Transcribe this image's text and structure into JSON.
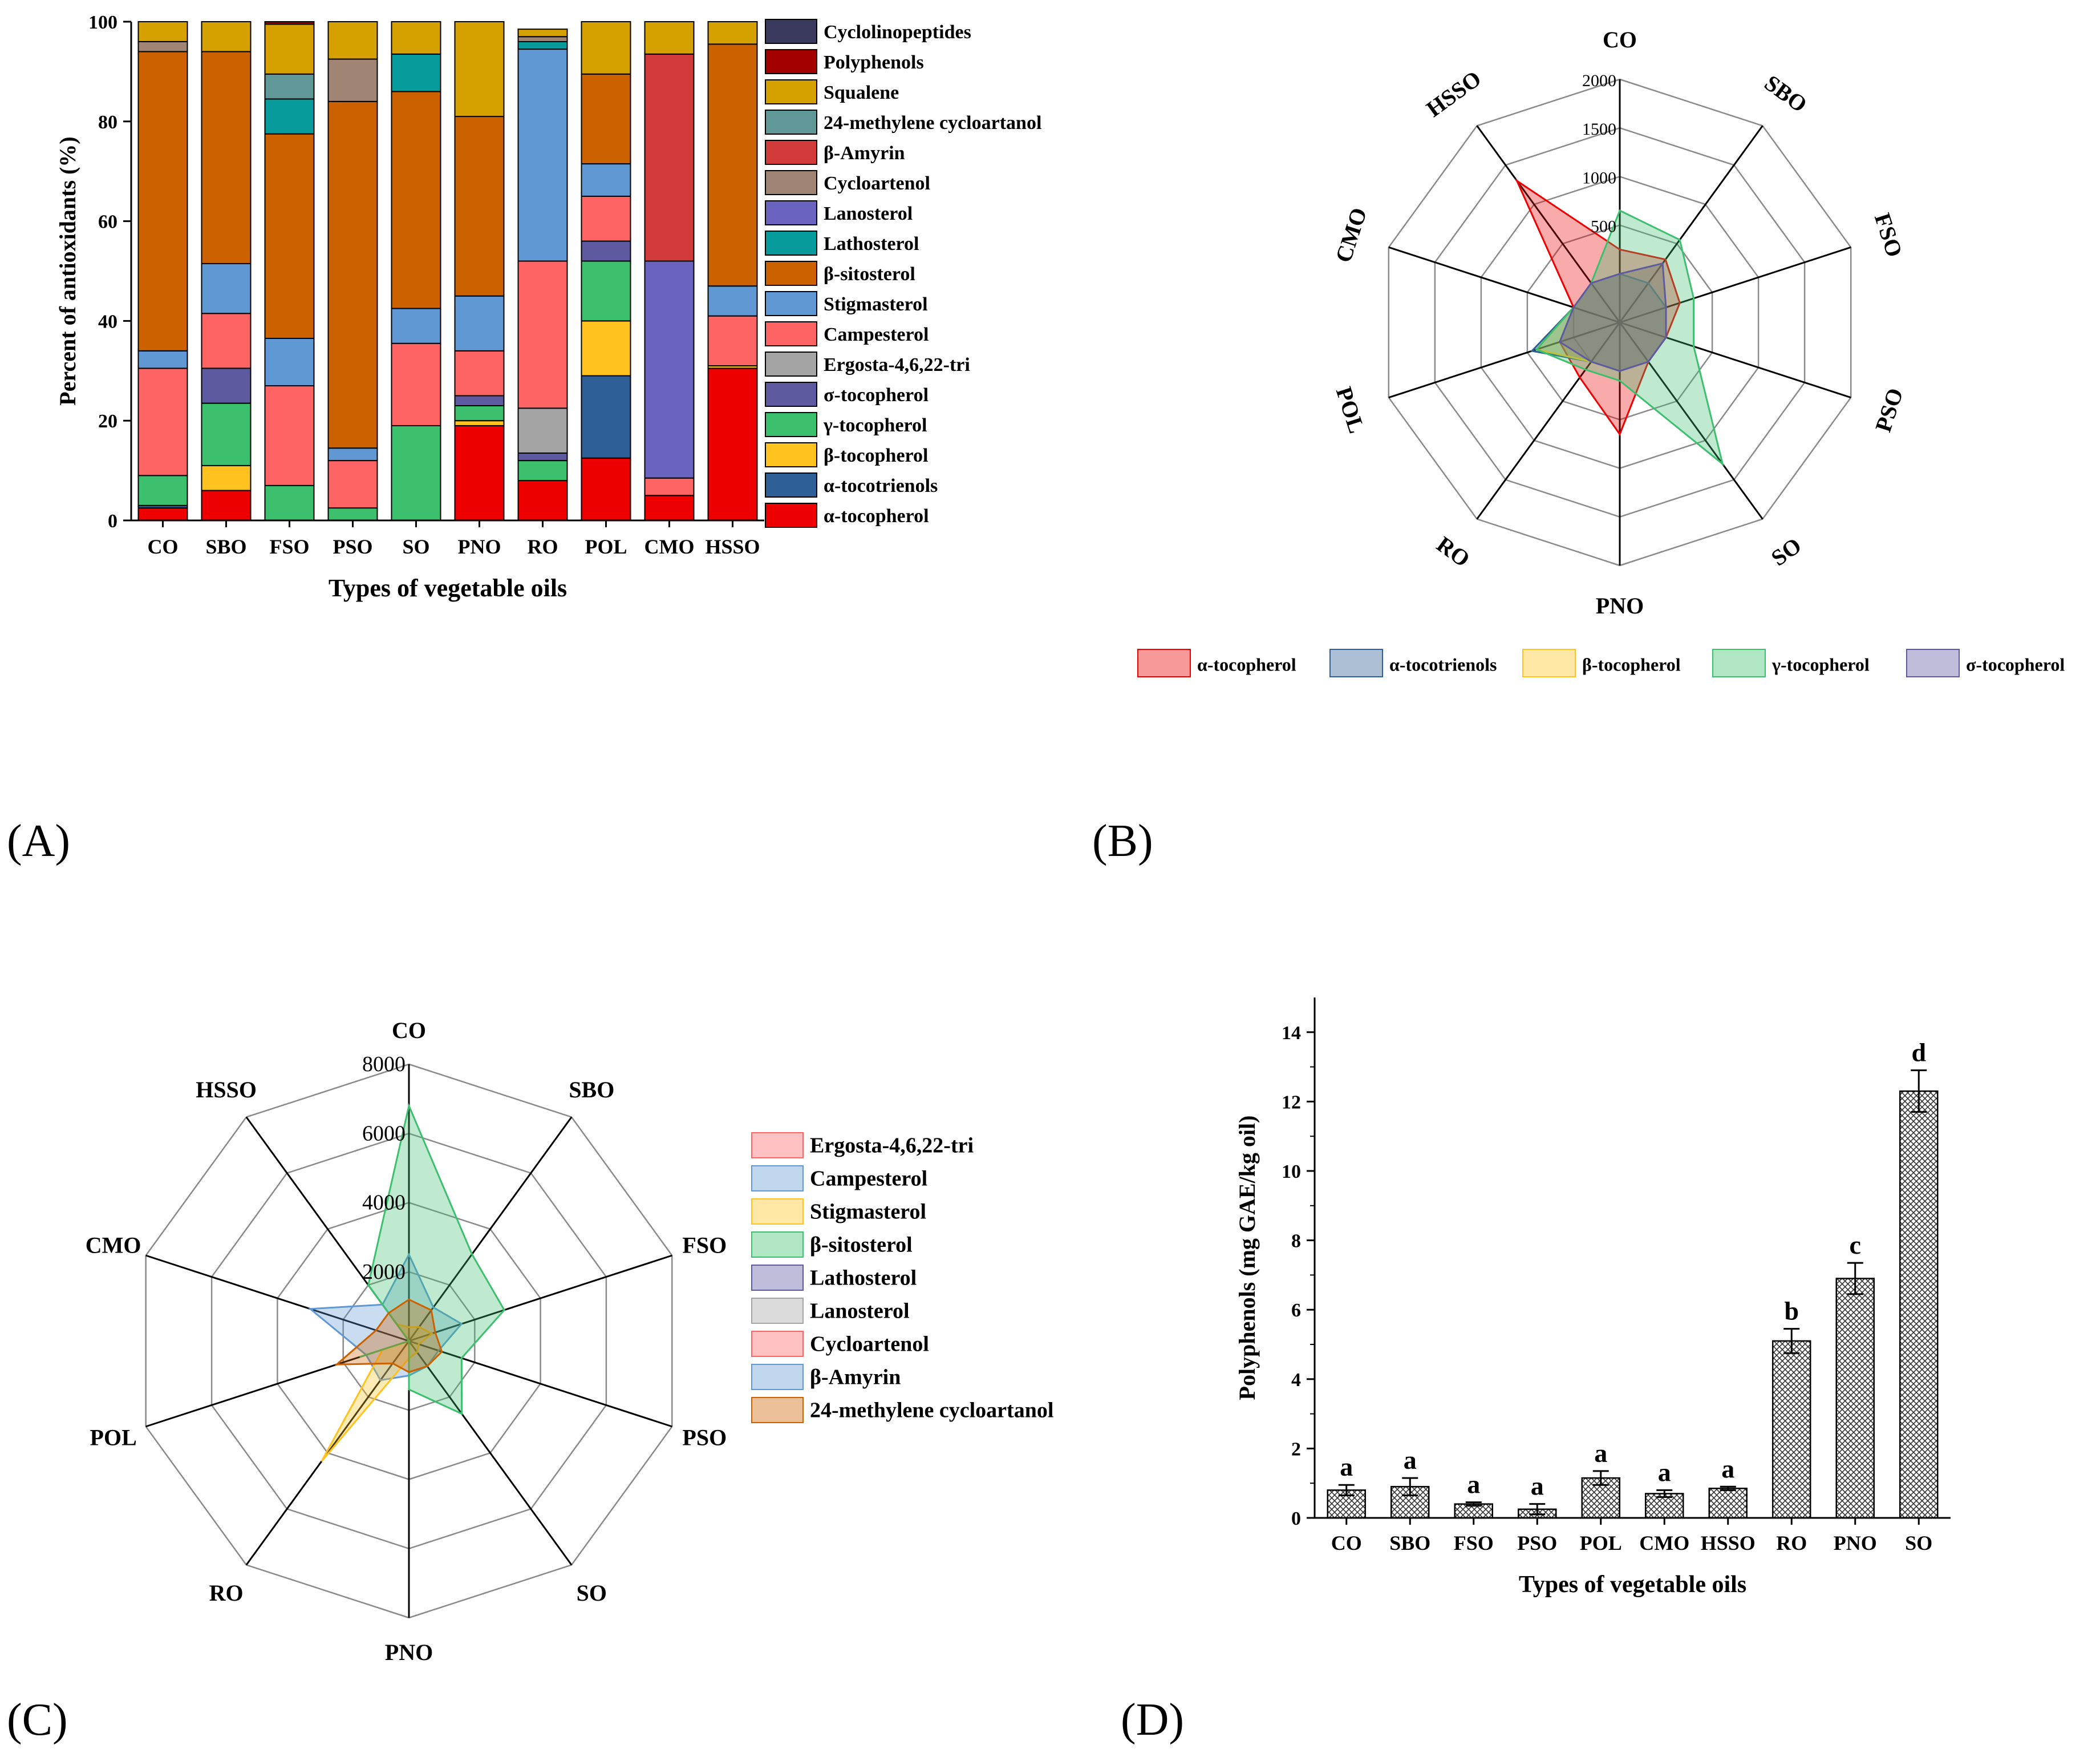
{
  "panels": {
    "a": "(A)",
    "b": "(B)",
    "c": "(C)",
    "d": "(D)"
  },
  "colors": {
    "cyclolinopeptides": "#3a3a5e",
    "polyphenols": "#a30000",
    "squalene": "#d4a100",
    "methylene": "#5f9896",
    "amyrin": "#d23b3b",
    "cycloartenol": "#a08575",
    "lanosterol": "#6b63c0",
    "lathosterol": "#089b9b",
    "sitosterol": "#cc6100",
    "stigmasterol": "#5f98d2",
    "campesterol": "#ff6464",
    "ergosta": "#a4a4a4",
    "sigma": "#5e5aa1",
    "gamma": "#3cc06e",
    "beta": "#ffc21f",
    "tocotrienol": "#2f5f97",
    "alpha": "#ee0000"
  },
  "chart_data": [
    {
      "id": "A",
      "type": "bar",
      "stacked": true,
      "title": "",
      "xlabel": "Types of vegetable oils",
      "ylabel": "Percent of antioxidants (%)",
      "ylim": [
        0,
        100
      ],
      "yticks": [
        "0",
        "20",
        "40",
        "60",
        "80",
        "100"
      ],
      "categories": [
        "CO",
        "SBO",
        "FSO",
        "PSO",
        "SO",
        "PNO",
        "RO",
        "POL",
        "CMO",
        "HSSO"
      ],
      "legend_position": "right",
      "series": [
        {
          "name": "α-tocopherol",
          "color_key": "alpha",
          "values": [
            2.5,
            6,
            0,
            0,
            0,
            19,
            8,
            12.5,
            5,
            30.5
          ]
        },
        {
          "name": "α-tocotrienols",
          "color_key": "tocotrienol",
          "values": [
            0.5,
            0,
            0,
            0,
            0,
            0,
            0,
            16.5,
            0,
            0
          ]
        },
        {
          "name": "β-tocopherol",
          "color_key": "beta",
          "values": [
            0,
            5,
            0,
            0,
            0,
            1,
            0,
            11,
            0,
            0.5
          ]
        },
        {
          "name": "γ-tocopherol",
          "color_key": "gamma",
          "values": [
            6,
            12.5,
            7,
            2.5,
            19,
            3,
            4,
            12,
            0,
            0
          ]
        },
        {
          "name": "σ-tocopherol",
          "color_key": "sigma",
          "values": [
            0,
            7,
            0,
            0,
            0,
            2,
            1.5,
            4,
            0,
            0
          ]
        },
        {
          "name": "Ergosta-4,6,22-tri",
          "color_key": "ergosta",
          "values": [
            0,
            0,
            0,
            0,
            0,
            0,
            9,
            0,
            0,
            0
          ]
        },
        {
          "name": "Campesterol",
          "color_key": "campesterol",
          "values": [
            21.5,
            11,
            20,
            9.5,
            16.5,
            9,
            29.5,
            9,
            3.5,
            10
          ]
        },
        {
          "name": "Stigmasterol",
          "color_key": "stigmasterol",
          "values": [
            3.5,
            10,
            9.5,
            2.5,
            7,
            11,
            42.5,
            6.5,
            0,
            6
          ]
        },
        {
          "name": "β-sitosterol",
          "color_key": "sitosterol",
          "values": [
            60,
            42.5,
            41,
            69.5,
            43.5,
            36,
            0,
            18,
            0,
            48.5
          ]
        },
        {
          "name": "Lathosterol",
          "color_key": "lathosterol",
          "values": [
            0,
            0,
            7,
            0,
            7.5,
            0,
            1.5,
            0,
            0,
            0
          ]
        },
        {
          "name": "Lanosterol",
          "color_key": "lanosterol",
          "values": [
            0,
            0,
            0,
            0,
            0,
            0,
            0,
            0,
            43.5,
            0
          ]
        },
        {
          "name": "Cycloartenol",
          "color_key": "cycloartenol",
          "values": [
            2,
            0,
            0,
            8.5,
            0,
            0,
            1,
            0,
            0,
            0
          ]
        },
        {
          "name": "β-Amyrin",
          "color_key": "amyrin",
          "values": [
            0,
            0,
            0,
            0,
            0,
            0,
            0,
            0,
            41.5,
            0
          ]
        },
        {
          "name": "24-methylene cycloartanol",
          "color_key": "methylene",
          "values": [
            0,
            0,
            5,
            0,
            0,
            0,
            0,
            0,
            0,
            0
          ]
        },
        {
          "name": "Squalene",
          "color_key": "squalene",
          "values": [
            4,
            6,
            10,
            7.5,
            6.5,
            19,
            1.5,
            10.5,
            6.5,
            4.5
          ]
        },
        {
          "name": "Polyphenols",
          "color_key": "polyphenols",
          "values": [
            0,
            0,
            0.5,
            0,
            0,
            0,
            0,
            0,
            0,
            0
          ]
        },
        {
          "name": "Cyclolinopeptides",
          "color_key": "cyclolinopeptides",
          "values": [
            0,
            0,
            0,
            0,
            0,
            0,
            0,
            0,
            0,
            0
          ]
        }
      ]
    },
    {
      "id": "B",
      "type": "radar",
      "title": "",
      "axes": [
        "CO",
        "SBO",
        "FSO",
        "PSO",
        "SO",
        "PNO",
        "RO",
        "POL",
        "CMO",
        "HSSO"
      ],
      "rlim": [
        -500,
        2000
      ],
      "rticks": [
        "500",
        "1000",
        "1500",
        "2000"
      ],
      "legend_position": "bottom",
      "series": [
        {
          "name": "α-tocopherol",
          "color_key": "alpha",
          "values": [
            250,
            300,
            150,
            0,
            0,
            650,
            200,
            150,
            0,
            1300
          ]
        },
        {
          "name": "α-tocotrienols",
          "color_key": "tocotrienol",
          "values": [
            0,
            0,
            0,
            0,
            0,
            0,
            0,
            450,
            0,
            0
          ]
        },
        {
          "name": "β-tocopherol",
          "color_key": "beta",
          "values": [
            0,
            250,
            0,
            0,
            0,
            0,
            0,
            400,
            0,
            0
          ]
        },
        {
          "name": "γ-tocopherol",
          "color_key": "gamma",
          "values": [
            650,
            550,
            300,
            300,
            1300,
            100,
            100,
            400,
            0,
            0
          ]
        },
        {
          "name": "σ-tocopherol",
          "color_key": "sigma",
          "values": [
            0,
            250,
            0,
            0,
            0,
            0,
            0,
            150,
            0,
            0
          ]
        }
      ]
    },
    {
      "id": "C",
      "type": "radar",
      "title": "",
      "axes": [
        "CO",
        "SBO",
        "FSO",
        "PSO",
        "SO",
        "PNO",
        "RO",
        "POL",
        "CMO",
        "HSSO"
      ],
      "rlim": [
        0,
        8000
      ],
      "rticks": [
        "2000",
        "4000",
        "6000",
        "8000"
      ],
      "legend_position": "right",
      "series": [
        {
          "name": "Ergosta-4,6,22-tri",
          "color_key": "campesterol",
          "values": [
            0,
            0,
            0,
            0,
            0,
            0,
            0,
            0,
            0,
            0
          ]
        },
        {
          "name": "Campesterol",
          "color_key": "stigmasterol",
          "values": [
            2500,
            1200,
            1600,
            900,
            900,
            1000,
            1400,
            1300,
            3000,
            1300
          ]
        },
        {
          "name": "Stigmasterol",
          "color_key": "beta",
          "values": [
            400,
            500,
            700,
            300,
            400,
            500,
            4300,
            800,
            0,
            600
          ]
        },
        {
          "name": "β-sitosterol",
          "color_key": "gamma",
          "values": [
            6800,
            3100,
            2900,
            1600,
            2600,
            1400,
            0,
            1500,
            0,
            2000
          ]
        },
        {
          "name": "Lathosterol",
          "color_key": "sigma",
          "values": [
            0,
            0,
            0,
            0,
            0,
            0,
            0,
            0,
            0,
            0
          ]
        },
        {
          "name": "Lanosterol",
          "color_key": "ergosta",
          "values": [
            0,
            0,
            0,
            0,
            0,
            0,
            0,
            0,
            0,
            0
          ]
        },
        {
          "name": "Cycloartenol",
          "color_key": "campesterol",
          "values": [
            0,
            0,
            0,
            0,
            0,
            0,
            0,
            0,
            0,
            0
          ]
        },
        {
          "name": "β-Amyrin",
          "color_key": "stigmasterol",
          "values": [
            0,
            0,
            0,
            0,
            0,
            0,
            0,
            0,
            0,
            0
          ]
        },
        {
          "name": "24-methylene cycloartanol",
          "color_key": "sitosterol",
          "values": [
            1200,
            1100,
            800,
            1000,
            900,
            900,
            800,
            2200,
            1000,
            1000
          ]
        }
      ]
    },
    {
      "id": "D",
      "type": "bar",
      "title": "",
      "xlabel": "Types of vegetable oils",
      "ylabel": "Polyphenols (mg GAE/kg oil)",
      "ylim": [
        0,
        15
      ],
      "yticks": [
        "0",
        "2",
        "4",
        "6",
        "8",
        "10",
        "12",
        "14"
      ],
      "categories": [
        "CO",
        "SBO",
        "FSO",
        "PSO",
        "POL",
        "CMO",
        "HSSO",
        "RO",
        "PNO",
        "SO"
      ],
      "values": [
        0.8,
        0.9,
        0.4,
        0.25,
        1.15,
        0.7,
        0.85,
        5.1,
        6.9,
        12.3
      ],
      "errors": [
        0.15,
        0.25,
        0.05,
        0.15,
        0.2,
        0.1,
        0.05,
        0.35,
        0.45,
        0.6
      ],
      "labels": [
        "a",
        "a",
        "a",
        "a",
        "a",
        "a",
        "a",
        "b",
        "c",
        "d"
      ]
    }
  ]
}
